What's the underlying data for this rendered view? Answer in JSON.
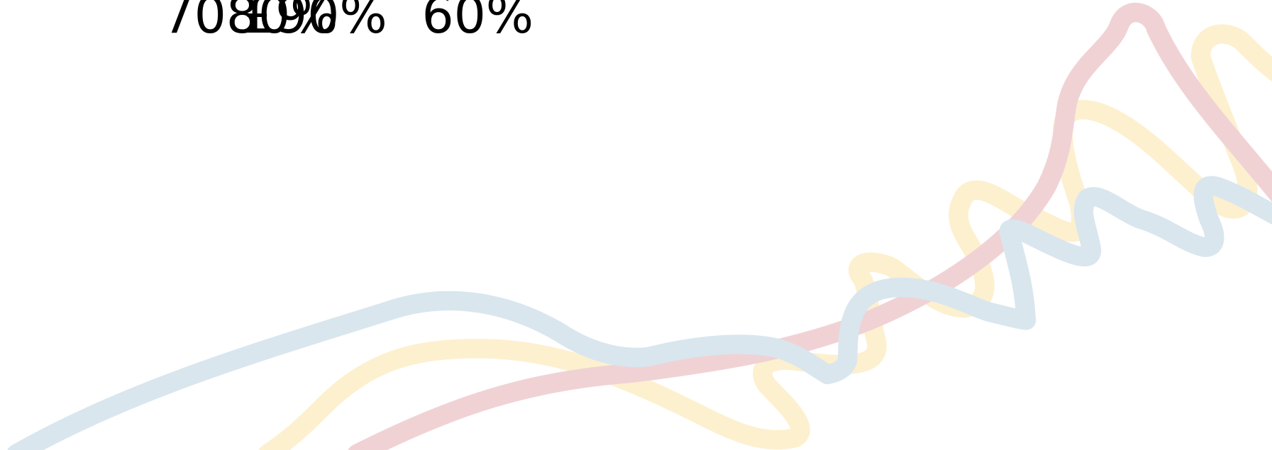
{
  "headline": {
    "texts": [
      "7080%",
      "£90%",
      "60%"
    ]
  }
}
